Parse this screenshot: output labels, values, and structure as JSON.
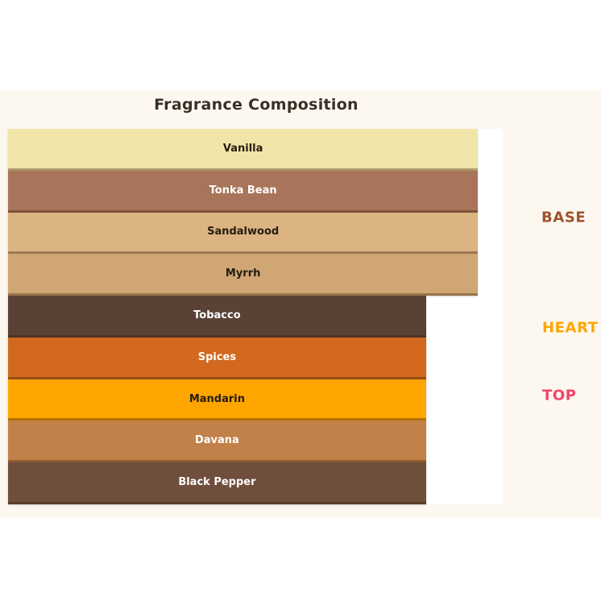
{
  "page": {
    "background": "#ffffff"
  },
  "figure": {
    "background": "#FCF8F0"
  },
  "chart_data": {
    "type": "bar",
    "orientation": "horizontal",
    "title": "Fragrance Composition",
    "title_color": "#3A2E26",
    "axes": "none",
    "grid": false,
    "tier_labels_position": "right",
    "bars": [
      {
        "label": "Vanilla",
        "tier": "BASE",
        "value": 95,
        "color": "#F2E5AA",
        "text_color": "#241B10"
      },
      {
        "label": "Tonka Bean",
        "tier": "BASE",
        "value": 95,
        "color": "#A8755A",
        "text_color": "#FFFFFF"
      },
      {
        "label": "Sandalwood",
        "tier": "BASE",
        "value": 95,
        "color": "#DBB482",
        "text_color": "#241B10"
      },
      {
        "label": "Myrrh",
        "tier": "BASE",
        "value": 95,
        "color": "#D0A675",
        "text_color": "#241B10"
      },
      {
        "label": "Tobacco",
        "tier": "HEART",
        "value": 84.5,
        "color": "#594136",
        "text_color": "#FFFFFF"
      },
      {
        "label": "Spices",
        "tier": "HEART",
        "value": 84.5,
        "color": "#D2691E",
        "text_color": "#FFFFFF"
      },
      {
        "label": "Mandarin",
        "tier": "TOP",
        "value": 84.5,
        "color": "#FFA500",
        "text_color": "#241B10"
      },
      {
        "label": "Davana",
        "tier": "TOP",
        "value": 84.5,
        "color": "#C28149",
        "text_color": "#FFFFFF"
      },
      {
        "label": "Black Pepper",
        "tier": "TOP",
        "value": 84.5,
        "color": "#6F4E3C",
        "text_color": "#FFFFFF"
      }
    ],
    "tiers": [
      {
        "name": "BASE",
        "color": "#A0522D"
      },
      {
        "name": "HEART",
        "color": "#FFA500"
      },
      {
        "name": "TOP",
        "color": "#F64168"
      }
    ]
  }
}
